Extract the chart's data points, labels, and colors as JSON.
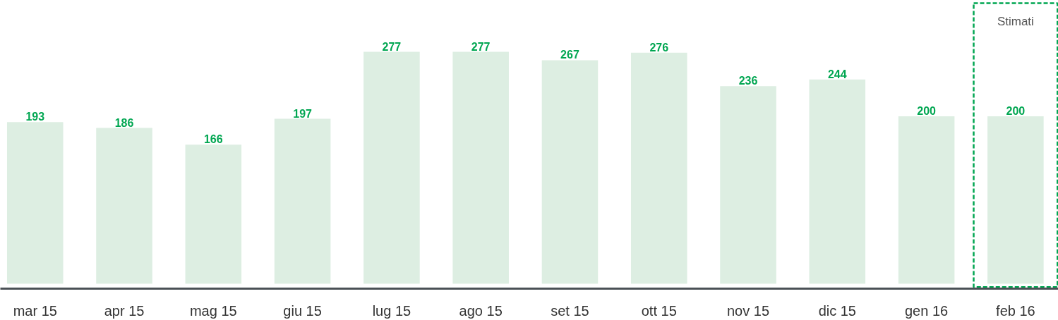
{
  "chart_data": {
    "type": "bar",
    "categories": [
      "mar 15",
      "apr 15",
      "mag 15",
      "giu 15",
      "lug 15",
      "ago 15",
      "set 15",
      "ott 15",
      "nov 15",
      "dic 15",
      "gen 16",
      "feb 16"
    ],
    "values": [
      193,
      186,
      166,
      197,
      277,
      277,
      267,
      276,
      236,
      244,
      200,
      200
    ],
    "color": "#ddeee2",
    "data_labels": true,
    "grid": false,
    "annotations": [
      "Stimati"
    ]
  }
}
